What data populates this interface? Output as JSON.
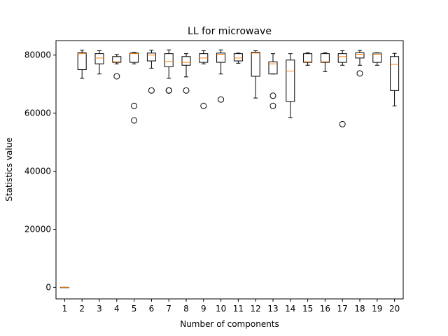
{
  "chart_data": {
    "type": "boxplot",
    "title": "LL for microwave",
    "xlabel": "Number of components",
    "ylabel": "Statistics value",
    "categories": [
      "1",
      "2",
      "3",
      "4",
      "5",
      "6",
      "7",
      "8",
      "9",
      "10",
      "11",
      "12",
      "13",
      "14",
      "15",
      "16",
      "17",
      "18",
      "19",
      "20"
    ],
    "ylim": [
      -4000,
      85000
    ],
    "yticks": [
      0,
      20000,
      40000,
      60000,
      80000
    ],
    "ytick_labels": [
      "0",
      "20000",
      "40000",
      "60000",
      "80000"
    ],
    "grid": false,
    "legend": "none",
    "colors": {
      "box": "#000000",
      "median": "#ff7f0e",
      "outlier": "#000000"
    },
    "boxes": [
      {
        "label": "1",
        "whislo": 0,
        "q1": 0,
        "med": 0,
        "q3": 0,
        "whishi": 0,
        "fliers": []
      },
      {
        "label": "2",
        "whislo": 72000,
        "q1": 75000,
        "med": 80500,
        "q3": 80800,
        "whishi": 81700,
        "fliers": []
      },
      {
        "label": "3",
        "whislo": 73500,
        "q1": 77000,
        "med": 79000,
        "q3": 80500,
        "whishi": 81500,
        "fliers": []
      },
      {
        "label": "4",
        "whislo": 77000,
        "q1": 77500,
        "med": 77700,
        "q3": 79500,
        "whishi": 80200,
        "fliers": [
          72700
        ]
      },
      {
        "label": "5",
        "whislo": 77000,
        "q1": 77500,
        "med": 80500,
        "q3": 80700,
        "whishi": 80900,
        "fliers": [
          62500,
          57500
        ]
      },
      {
        "label": "6",
        "whislo": 75500,
        "q1": 78000,
        "med": 80000,
        "q3": 80700,
        "whishi": 81700,
        "fliers": [
          67800
        ]
      },
      {
        "label": "7",
        "whislo": 72000,
        "q1": 76000,
        "med": 77800,
        "q3": 80500,
        "whishi": 81800,
        "fliers": [
          67800,
          67800
        ]
      },
      {
        "label": "8",
        "whislo": 72500,
        "q1": 76500,
        "med": 77500,
        "q3": 79500,
        "whishi": 80500,
        "fliers": [
          67800
        ]
      },
      {
        "label": "9",
        "whislo": 77000,
        "q1": 77500,
        "med": 79000,
        "q3": 80500,
        "whishi": 81500,
        "fliers": [
          62500
        ]
      },
      {
        "label": "10",
        "whislo": 73500,
        "q1": 77500,
        "med": 80300,
        "q3": 80700,
        "whishi": 81800,
        "fliers": [
          64700
        ]
      },
      {
        "label": "11",
        "whislo": 77200,
        "q1": 78000,
        "med": 79000,
        "q3": 80500,
        "whishi": 80700,
        "fliers": []
      },
      {
        "label": "12",
        "whislo": 65200,
        "q1": 72700,
        "med": 80700,
        "q3": 81000,
        "whishi": 81500,
        "fliers": []
      },
      {
        "label": "13",
        "whislo": 73500,
        "q1": 73500,
        "med": 77000,
        "q3": 77700,
        "whishi": 80500,
        "fliers": [
          66000,
          62500
        ]
      },
      {
        "label": "14",
        "whislo": 58500,
        "q1": 64000,
        "med": 74500,
        "q3": 78300,
        "whishi": 80500,
        "fliers": []
      },
      {
        "label": "15",
        "whislo": 76500,
        "q1": 77500,
        "med": 77700,
        "q3": 80500,
        "whishi": 80800,
        "fliers": []
      },
      {
        "label": "16",
        "whislo": 74300,
        "q1": 77500,
        "med": 77700,
        "q3": 80500,
        "whishi": 80800,
        "fliers": []
      },
      {
        "label": "17",
        "whislo": 76500,
        "q1": 77500,
        "med": 79500,
        "q3": 80500,
        "whishi": 81500,
        "fliers": [
          56200
        ]
      },
      {
        "label": "18",
        "whislo": 76500,
        "q1": 79000,
        "med": 80300,
        "q3": 80800,
        "whishi": 81600,
        "fliers": [
          73700
        ]
      },
      {
        "label": "19",
        "whislo": 76500,
        "q1": 77500,
        "med": 80300,
        "q3": 80700,
        "whishi": 80800,
        "fliers": []
      },
      {
        "label": "20",
        "whislo": 62500,
        "q1": 67800,
        "med": 76800,
        "q3": 79500,
        "whishi": 80600,
        "fliers": []
      }
    ]
  }
}
